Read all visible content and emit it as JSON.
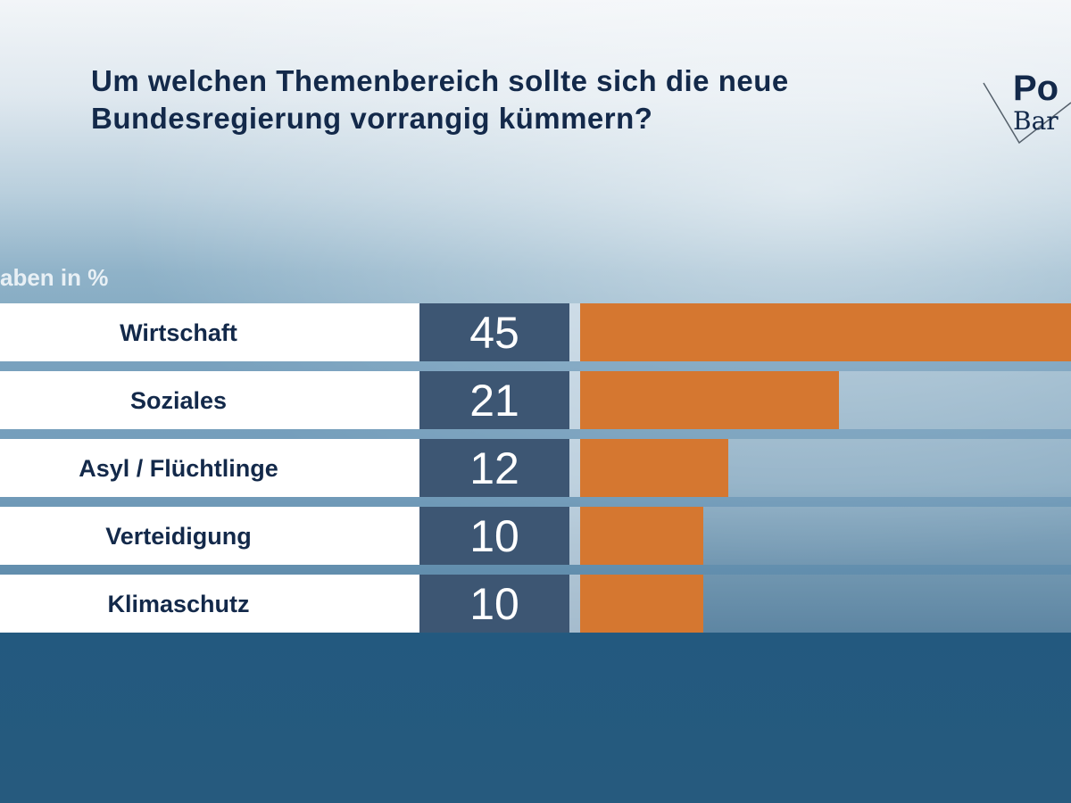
{
  "chart_data": {
    "type": "bar",
    "title": "Um welchen Themenbereich sollte sich die neue Bundesregierung vorrangig kümmern?",
    "unit_label": "aben in %",
    "categories": [
      "Wirtschaft",
      "Soziales",
      "Asyl / Flüchtlinge",
      "Verteidigung",
      "Klimaschutz"
    ],
    "values": [
      45,
      21,
      12,
      10,
      10
    ],
    "orientation": "horizontal",
    "colors": {
      "bar": "#d57730",
      "value_box": "#3d5673",
      "label_box": "#ffffff",
      "title": "#13294a"
    }
  },
  "logo": {
    "line1": "Po",
    "line2": "Bar"
  }
}
